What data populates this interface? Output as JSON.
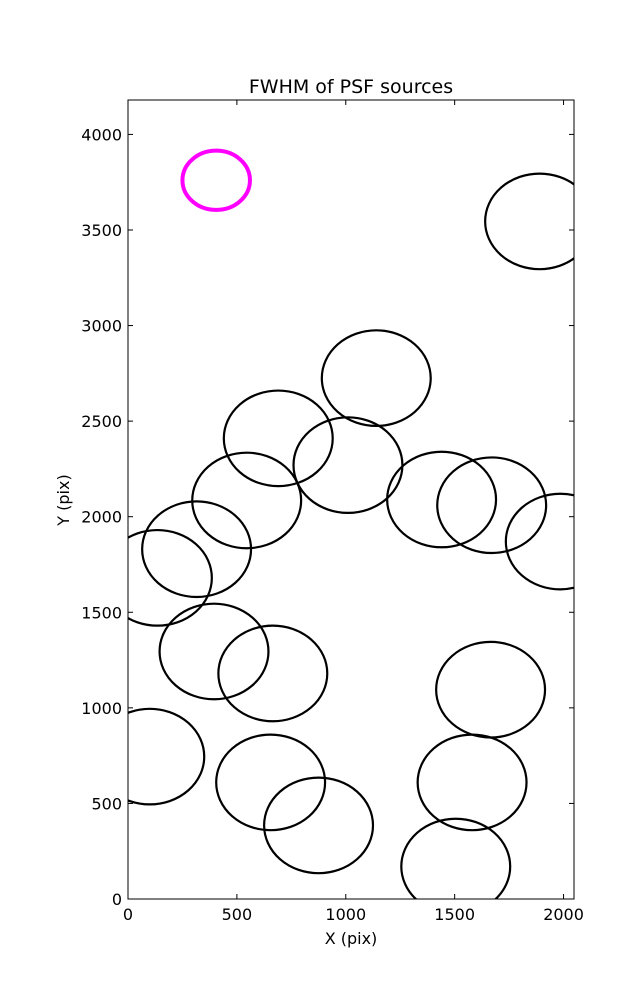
{
  "chart_data": {
    "type": "scatter",
    "title": "FWHM of PSF sources",
    "xlabel": "X (pix)",
    "ylabel": "Y (pix)",
    "xlim": [
      0,
      2048
    ],
    "ylim": [
      0,
      4180
    ],
    "xticks": [
      0,
      500,
      1000,
      1500,
      2000
    ],
    "yticks": [
      0,
      500,
      1000,
      1500,
      2000,
      2500,
      3000,
      3500,
      4000
    ],
    "grid": false,
    "legend": "none",
    "colors": {
      "source": "#000000",
      "marker": "#ff00ff"
    },
    "sources": [
      {
        "x": 1890,
        "y": 3545,
        "radius": 250
      },
      {
        "x": 1140,
        "y": 2725,
        "radius": 250
      },
      {
        "x": 690,
        "y": 2410,
        "radius": 250
      },
      {
        "x": 1010,
        "y": 2270,
        "radius": 250
      },
      {
        "x": 545,
        "y": 2085,
        "radius": 250
      },
      {
        "x": 1440,
        "y": 2090,
        "radius": 250
      },
      {
        "x": 1670,
        "y": 2060,
        "radius": 250
      },
      {
        "x": 1985,
        "y": 1870,
        "radius": 250
      },
      {
        "x": 315,
        "y": 1830,
        "radius": 250
      },
      {
        "x": 135,
        "y": 1680,
        "radius": 250
      },
      {
        "x": 395,
        "y": 1295,
        "radius": 250
      },
      {
        "x": 665,
        "y": 1180,
        "radius": 250
      },
      {
        "x": 1665,
        "y": 1095,
        "radius": 250
      },
      {
        "x": 100,
        "y": 745,
        "radius": 250
      },
      {
        "x": 655,
        "y": 610,
        "radius": 250
      },
      {
        "x": 1580,
        "y": 610,
        "radius": 250
      },
      {
        "x": 875,
        "y": 385,
        "radius": 250
      },
      {
        "x": 1505,
        "y": 170,
        "radius": 250
      }
    ],
    "marker": {
      "x": 405,
      "y": 3760,
      "radius": 155
    }
  }
}
